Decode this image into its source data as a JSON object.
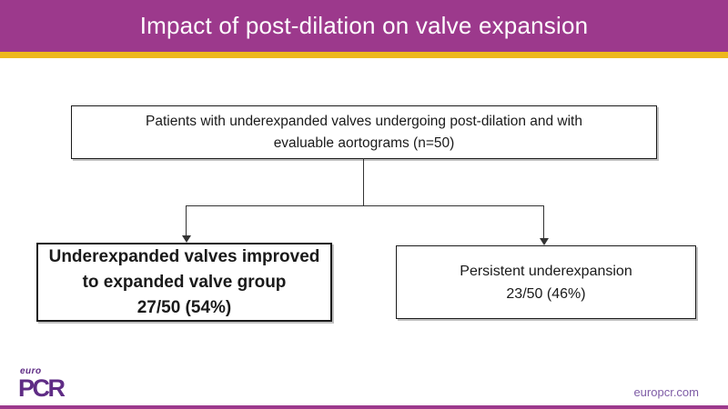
{
  "slide": {
    "title": "Impact of post-dilation on valve expansion",
    "colors": {
      "header_purple": "#9c398c",
      "gold_accent": "#edb81e",
      "logo_purple": "#5f2c85",
      "website_purple": "#7e5ca6",
      "connector_line": "#333333"
    },
    "footer": {
      "logo_euro": "euro",
      "logo_pcr": "PCR",
      "website": "europcr.com"
    }
  },
  "flowchart": {
    "root_box": {
      "line1": "Patients with underexpanded valves undergoing post-dilation and with",
      "line2": "evaluable aortograms (n=50)"
    },
    "left_box": {
      "line1": "Underexpanded valves improved",
      "line2": "to expanded valve group",
      "line3": "27/50 (54%)"
    },
    "right_box": {
      "line1": "Persistent underexpansion",
      "line2": "23/50 (46%)"
    }
  }
}
